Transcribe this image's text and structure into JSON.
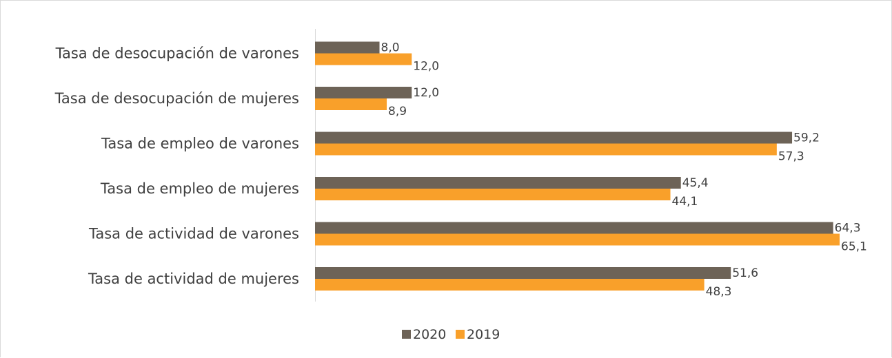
{
  "chart_data": {
    "type": "bar",
    "orientation": "horizontal",
    "categories": [
      "Tasa de desocupación de varones",
      "Tasa de desocupación de mujeres",
      "Tasa de empleo de varones",
      "Tasa de empleo de mujeres",
      "Tasa de actividad de varones",
      "Tasa de actividad de mujeres"
    ],
    "series": [
      {
        "name": "2020",
        "color": "#6d6357",
        "values": [
          8.0,
          12.0,
          59.2,
          45.4,
          64.3,
          51.6
        ],
        "labels": [
          "8,0",
          "12,0",
          "59,2",
          "45,4",
          "64,3",
          "51,6"
        ]
      },
      {
        "name": "2019",
        "color": "#f9a02a",
        "values": [
          12.0,
          8.9,
          57.3,
          44.1,
          65.1,
          48.3
        ],
        "labels": [
          "12,0",
          "8,9",
          "57,3",
          "44,1",
          "65,1",
          "48,3"
        ]
      }
    ],
    "legend": {
      "position": "bottom",
      "entries": [
        "2020",
        "2019"
      ]
    },
    "grid": false,
    "xlim": [
      0,
      70
    ]
  }
}
